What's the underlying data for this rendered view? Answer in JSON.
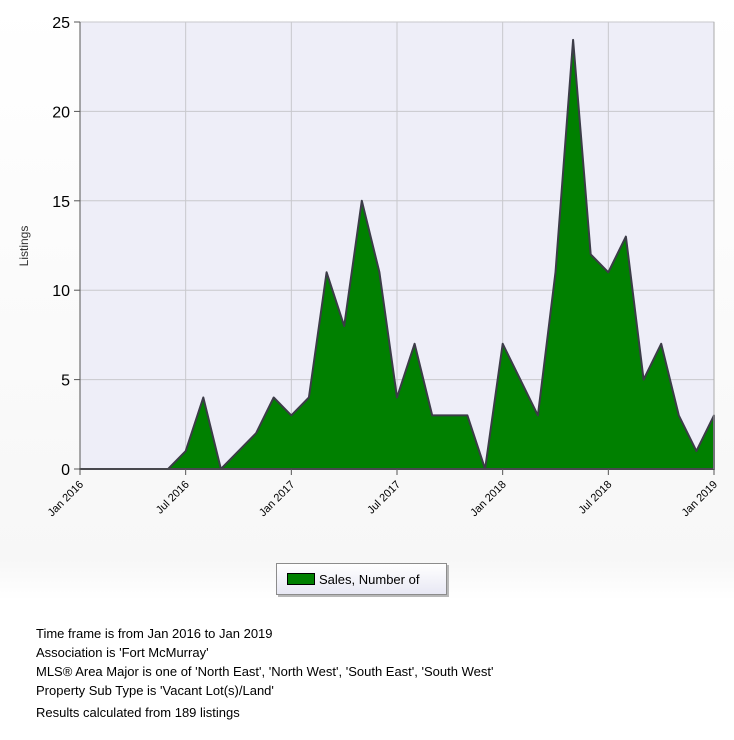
{
  "chart_data": {
    "type": "area",
    "x": [
      "Jan 2016",
      "Feb 2016",
      "Mar 2016",
      "Apr 2016",
      "May 2016",
      "Jun 2016",
      "Jul 2016",
      "Aug 2016",
      "Sep 2016",
      "Oct 2016",
      "Nov 2016",
      "Dec 2016",
      "Jan 2017",
      "Feb 2017",
      "Mar 2017",
      "Apr 2017",
      "May 2017",
      "Jun 2017",
      "Jul 2017",
      "Aug 2017",
      "Sep 2017",
      "Oct 2017",
      "Nov 2017",
      "Dec 2017",
      "Jan 2018",
      "Feb 2018",
      "Mar 2018",
      "Apr 2018",
      "May 2018",
      "Jun 2018",
      "Jul 2018",
      "Aug 2018",
      "Sep 2018",
      "Oct 2018",
      "Nov 2018",
      "Dec 2018",
      "Jan 2019"
    ],
    "series": [
      {
        "name": "Sales, Number of",
        "color": "#008000",
        "values": [
          0,
          0,
          0,
          0,
          0,
          0,
          1,
          4,
          0,
          1,
          2,
          4,
          3,
          4,
          11,
          8,
          15,
          11,
          4,
          7,
          3,
          3,
          3,
          0,
          7,
          5,
          3,
          11,
          24,
          12,
          11,
          13,
          5,
          7,
          3,
          1,
          3
        ]
      }
    ],
    "xticks": [
      "Jan 2016",
      "Jul 2016",
      "Jan 2017",
      "Jul 2017",
      "Jan 2018",
      "Jul 2018",
      "Jan 2019"
    ],
    "yticks": [
      "0",
      "5",
      "10",
      "15",
      "20",
      "25"
    ],
    "ylabel": "Listings",
    "xlabel": "",
    "ylim": [
      0,
      25
    ],
    "grid": true,
    "legend_position": "bottom-center"
  },
  "legend": {
    "label": "Sales, Number of"
  },
  "info": {
    "line1": "Time frame is from Jan 2016 to Jan 2019",
    "line2": "Association is 'Fort McMurray'",
    "line3": "MLS® Area Major is one of 'North East', 'North West', 'South East', 'South West'",
    "line4": "Property Sub Type is 'Vacant Lot(s)/Land'",
    "line5": "Results calculated from 189 listings"
  }
}
